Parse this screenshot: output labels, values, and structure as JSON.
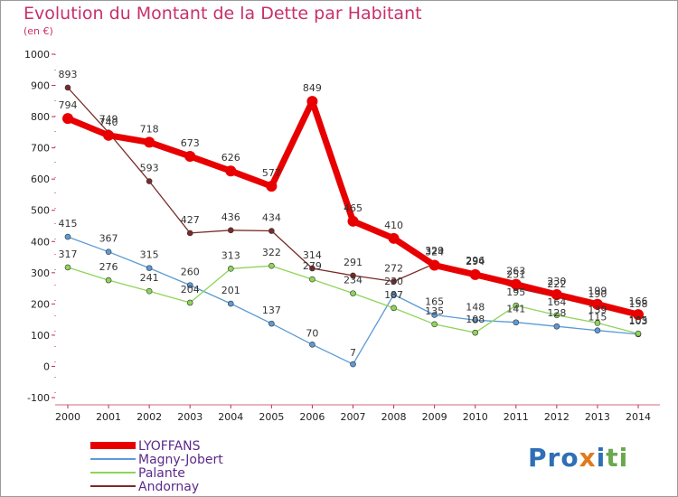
{
  "title": "Evolution du Montant de la Dette par Habitant",
  "subtitle": "(en €)",
  "logo": [
    "P",
    "r",
    "o",
    "x",
    "i",
    "t",
    "i"
  ],
  "colors": {
    "title": "#c8306a",
    "logo": [
      "#2f6fb5",
      "#2f6fb5",
      "#2f6fb5",
      "#e07a1f",
      "#2f6fb5",
      "#6aa84f",
      "#6aa84f"
    ]
  },
  "chart_data": {
    "type": "line",
    "x": [
      "2000",
      "2001",
      "2002",
      "2003",
      "2004",
      "2005",
      "2006",
      "2007",
      "2008",
      "2009",
      "2010",
      "2011",
      "2012",
      "2013",
      "2014"
    ],
    "ylim": [
      -100,
      1000
    ],
    "yticks": [
      "-100",
      "0",
      "100",
      "200",
      "300",
      "400",
      "500",
      "600",
      "700",
      "800",
      "900",
      "1000"
    ],
    "grid": false,
    "legend_position": "bottom-left",
    "series": [
      {
        "name": "LYOFFANS",
        "color": "#e80000",
        "values": [
          794,
          740,
          718,
          673,
          626,
          577,
          849,
          465,
          410,
          324,
          294,
          263,
          230,
          199,
          166
        ],
        "labels": [
          "794",
          "740",
          "718",
          "673",
          "626",
          "577",
          "849",
          "465",
          "410",
          "324",
          "294",
          "263",
          "230",
          "199",
          "166"
        ]
      },
      {
        "name": "Magny-Jobert",
        "color": "#5b9bd5",
        "values": [
          415,
          367,
          315,
          260,
          201,
          137,
          70,
          7,
          230,
          165,
          148,
          141,
          128,
          115,
          103
        ],
        "labels": [
          "415",
          "367",
          "315",
          "260",
          "201",
          "137",
          "70",
          "7",
          "230",
          "165",
          "148",
          "141",
          "128",
          "115",
          "103"
        ]
      },
      {
        "name": "Palante",
        "color": "#8fd45a",
        "values": [
          317,
          276,
          241,
          204,
          313,
          322,
          279,
          234,
          187,
          135,
          108,
          195,
          164,
          139,
          105
        ],
        "labels": [
          "317",
          "276",
          "241",
          "204",
          "313",
          "322",
          "279",
          "234",
          "187",
          "135",
          "108",
          "195",
          "164",
          "139",
          "105"
        ]
      },
      {
        "name": "Andornay",
        "color": "#7a2a2a",
        "values": [
          893,
          749,
          593,
          427,
          436,
          434,
          314,
          291,
          272,
          329,
          296,
          251,
          222,
          190,
          158
        ],
        "labels": [
          "893",
          "749",
          "593",
          "427",
          "436",
          "434",
          "314",
          "291",
          "272",
          "329",
          "296",
          "251",
          "222",
          "190",
          "158"
        ]
      }
    ]
  }
}
